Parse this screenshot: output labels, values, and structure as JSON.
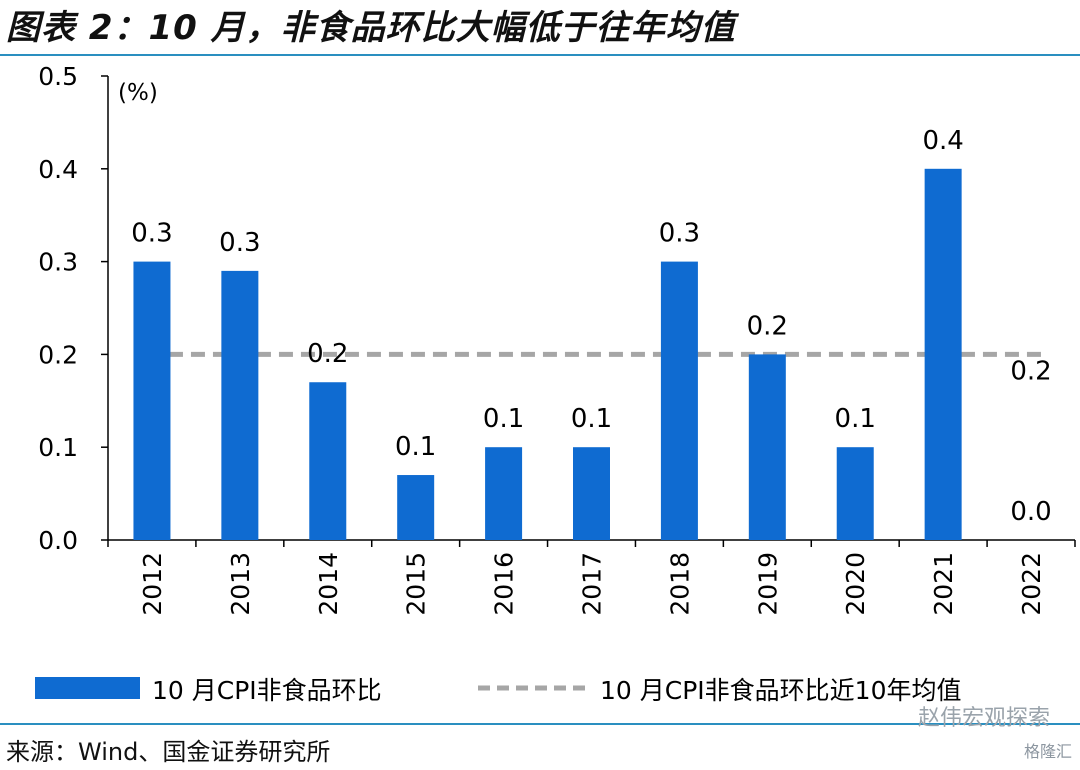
{
  "header": {
    "title": "图表 2：10 月，非食品环比大幅低于往年均值",
    "source": "来源：Wind、国金证券研究所",
    "watermark": "赵伟宏观探索",
    "watermark_small": "格隆汇"
  },
  "colors": {
    "bar": "#0f6bd1",
    "avg_line": "#a6a6a6",
    "rule": "#2a8fc0"
  },
  "chart_data": {
    "type": "bar",
    "unit_label": "(%)",
    "categories": [
      "2012",
      "2013",
      "2014",
      "2015",
      "2016",
      "2017",
      "2018",
      "2019",
      "2020",
      "2021",
      "2022"
    ],
    "series": [
      {
        "name": "10 月CPI非食品环比",
        "type": "bar",
        "values": [
          0.3,
          0.29,
          0.17,
          0.07,
          0.1,
          0.1,
          0.3,
          0.2,
          0.1,
          0.4,
          0.0
        ],
        "labels": [
          "0.3",
          "0.3",
          "0.2",
          "0.1",
          "0.1",
          "0.1",
          "0.3",
          "0.2",
          "0.1",
          "0.4",
          "0.0"
        ]
      },
      {
        "name": "10 月CPI非食品环比近10年均值",
        "type": "line",
        "style": "dashed",
        "value": 0.2,
        "label": "0.2"
      }
    ],
    "ylim": [
      0,
      0.5
    ],
    "yticks": [
      "0.0",
      "0.1",
      "0.2",
      "0.3",
      "0.4",
      "0.5"
    ],
    "legend": "bottom"
  }
}
